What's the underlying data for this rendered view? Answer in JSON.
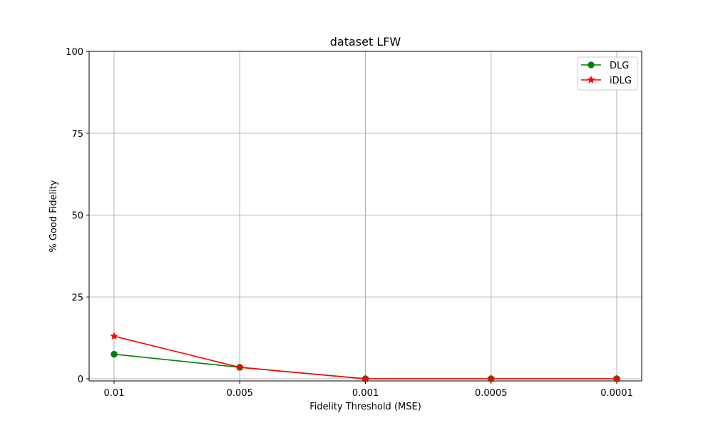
{
  "chart_data": {
    "type": "line",
    "title": "dataset LFW",
    "xlabel": "Fidelity Threshold (MSE)",
    "ylabel": "% Good Fidelity",
    "categories": [
      "0.01",
      "0.005",
      "0.001",
      "0.0005",
      "0.0001"
    ],
    "yticks": [
      "0",
      "25",
      "50",
      "75",
      "100"
    ],
    "ylim": [
      0,
      100
    ],
    "grid": true,
    "legend_position": "top-right",
    "series": [
      {
        "name": "DLG",
        "values": [
          7.5,
          3.5,
          0,
          0,
          0
        ],
        "color": "#008000",
        "marker": "circle"
      },
      {
        "name": "iDLG",
        "values": [
          13,
          3.5,
          0,
          0,
          0
        ],
        "color": "#ff0000",
        "marker": "star"
      }
    ]
  }
}
